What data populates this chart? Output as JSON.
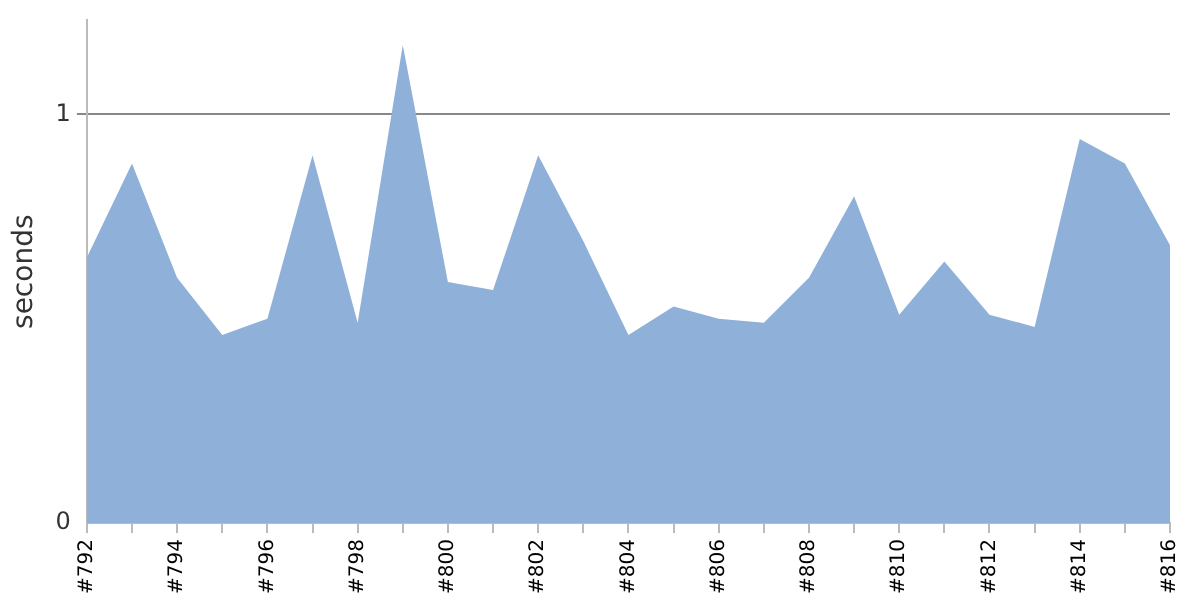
{
  "chart_data": {
    "type": "area",
    "ylabel": "seconds",
    "categories": [
      "#792",
      null,
      "#794",
      null,
      "#796",
      null,
      "#798",
      null,
      "#800",
      null,
      "#802",
      null,
      "#804",
      null,
      "#806",
      null,
      "#808",
      null,
      "#810",
      null,
      "#812",
      null,
      "#814",
      null,
      "#816"
    ],
    "series": [
      {
        "color": "#8fb1d9",
        "values": [
          0.65,
          0.88,
          0.6,
          0.46,
          0.5,
          0.9,
          0.49,
          1.17,
          0.59,
          0.57,
          0.9,
          0.69,
          0.46,
          0.53,
          0.5,
          0.49,
          0.6,
          0.8,
          0.51,
          0.64,
          0.51,
          0.48,
          0.94,
          0.88,
          0.68
        ]
      }
    ],
    "ylim": [
      0,
      1.23
    ],
    "yticks": [
      0,
      1
    ],
    "grid": "y"
  }
}
